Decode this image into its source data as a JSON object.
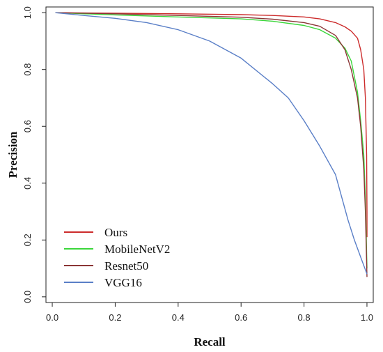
{
  "chart_data": {
    "type": "line",
    "title": "",
    "xlabel": "Recall",
    "ylabel": "Precision",
    "xlim": [
      -0.02,
      1.02
    ],
    "ylim": [
      -0.02,
      1.02
    ],
    "xticks": [
      "0.0",
      "0.2",
      "0.4",
      "0.6",
      "0.8",
      "1.0"
    ],
    "yticks": [
      "0.0",
      "0.2",
      "0.4",
      "0.6",
      "0.8",
      "1.0"
    ],
    "grid": false,
    "legend_position": "bottom-left",
    "series": [
      {
        "name": "Ours",
        "color": "#cc2b2b",
        "x": [
          0.01,
          0.2,
          0.4,
          0.6,
          0.7,
          0.8,
          0.85,
          0.9,
          0.93,
          0.95,
          0.97,
          0.98,
          0.99,
          0.995,
          0.999,
          1.0,
          1.0
        ],
        "y": [
          1.0,
          0.998,
          0.996,
          0.993,
          0.99,
          0.985,
          0.978,
          0.965,
          0.95,
          0.935,
          0.91,
          0.87,
          0.8,
          0.7,
          0.5,
          0.3,
          0.21
        ]
      },
      {
        "name": "MobileNetV2",
        "color": "#3ad63a",
        "x": [
          0.01,
          0.2,
          0.4,
          0.6,
          0.7,
          0.8,
          0.85,
          0.9,
          0.93,
          0.95,
          0.97,
          0.98,
          0.99,
          0.995,
          1.0
        ],
        "y": [
          1.0,
          0.992,
          0.985,
          0.978,
          0.97,
          0.955,
          0.94,
          0.91,
          0.875,
          0.83,
          0.72,
          0.62,
          0.5,
          0.35,
          0.1
        ]
      },
      {
        "name": "Resnet50",
        "color": "#8b3535",
        "x": [
          0.01,
          0.2,
          0.4,
          0.6,
          0.7,
          0.8,
          0.85,
          0.9,
          0.93,
          0.95,
          0.97,
          0.98,
          0.99,
          0.995,
          1.0
        ],
        "y": [
          1.0,
          0.996,
          0.99,
          0.984,
          0.977,
          0.965,
          0.952,
          0.92,
          0.87,
          0.8,
          0.7,
          0.6,
          0.45,
          0.3,
          0.07
        ]
      },
      {
        "name": "VGG16",
        "color": "#5a7fc7",
        "x": [
          0.01,
          0.1,
          0.2,
          0.3,
          0.4,
          0.5,
          0.6,
          0.7,
          0.75,
          0.8,
          0.85,
          0.9,
          0.92,
          0.94,
          0.96,
          0.98,
          1.0
        ],
        "y": [
          1.0,
          0.99,
          0.98,
          0.965,
          0.94,
          0.9,
          0.84,
          0.75,
          0.7,
          0.62,
          0.53,
          0.43,
          0.35,
          0.27,
          0.2,
          0.14,
          0.08
        ]
      }
    ]
  }
}
